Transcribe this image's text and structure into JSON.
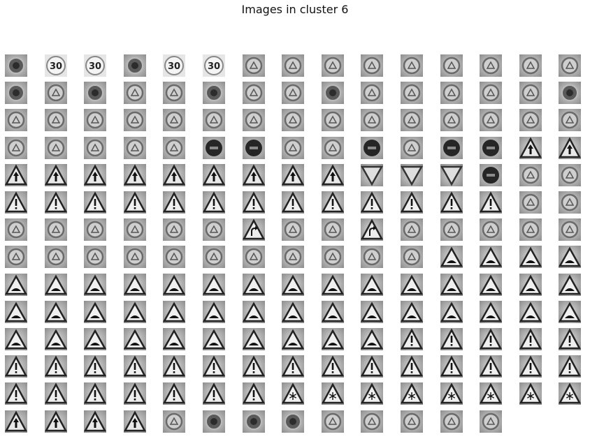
{
  "title": "Images in cluster 6",
  "grid": {
    "columns": 15,
    "count": 208,
    "tiles": [
      "circle-dark",
      "speed30",
      "speed30",
      "circle-dark",
      "speed30",
      "speed30",
      "circle-light",
      "circle-light",
      "circle-light",
      "circle-light",
      "circle-light",
      "circle-light",
      "circle-light",
      "circle-light",
      "circle-light",
      "circle-dark",
      "circle-light",
      "circle-dark",
      "circle-light",
      "circle-light",
      "circle-dark",
      "circle-light",
      "circle-light",
      "circle-dark",
      "circle-light",
      "circle-light",
      "circle-light",
      "circle-light",
      "circle-light",
      "circle-dark",
      "circle-light",
      "circle-light",
      "circle-light",
      "circle-light",
      "circle-light",
      "circle-light",
      "circle-light",
      "circle-light",
      "circle-light",
      "circle-light",
      "circle-light",
      "circle-light",
      "circle-light",
      "circle-light",
      "circle-light",
      "circle-light",
      "circle-light",
      "circle-light",
      "circle-light",
      "circle-light",
      "circle-black",
      "circle-black",
      "circle-light",
      "circle-light",
      "circle-black",
      "circle-light",
      "circle-black",
      "circle-black",
      "triangle-up",
      "triangle-up",
      "triangle-up",
      "triangle-up",
      "triangle-up",
      "triangle-up",
      "triangle-up",
      "triangle-up",
      "triangle-up",
      "triangle-up",
      "triangle-up",
      "triangle-inverted",
      "triangle-inverted",
      "triangle-inverted",
      "circle-black",
      "circle-light",
      "circle-light",
      "triangle-excl",
      "triangle-excl",
      "triangle-excl",
      "triangle-excl",
      "triangle-excl",
      "triangle-excl",
      "triangle-excl",
      "triangle-excl",
      "triangle-excl",
      "triangle-excl",
      "triangle-excl",
      "triangle-excl",
      "triangle-excl",
      "circle-light",
      "circle-light",
      "circle-light",
      "circle-light",
      "circle-light",
      "circle-light",
      "circle-light",
      "circle-light",
      "triangle-curve",
      "circle-light",
      "circle-light",
      "triangle-curve",
      "circle-light",
      "circle-light",
      "circle-light",
      "circle-light",
      "circle-light",
      "circle-light",
      "circle-light",
      "circle-light",
      "circle-light",
      "circle-light",
      "circle-light",
      "circle-light",
      "circle-light",
      "circle-light",
      "circle-light",
      "circle-light",
      "triangle-bump",
      "triangle-bump",
      "triangle-bump",
      "triangle-bump",
      "triangle-bump",
      "triangle-bump",
      "triangle-bump",
      "triangle-bump",
      "triangle-bump",
      "triangle-bump",
      "triangle-bump",
      "triangle-bump",
      "triangle-bump",
      "triangle-bump",
      "triangle-bump",
      "triangle-bump",
      "triangle-bump",
      "triangle-bump",
      "triangle-bump",
      "triangle-bump",
      "triangle-bump",
      "triangle-bump",
      "triangle-bump",
      "triangle-bump",
      "triangle-bump",
      "triangle-bump",
      "triangle-bump",
      "triangle-bump",
      "triangle-bump",
      "triangle-bump",
      "triangle-bump",
      "triangle-bump",
      "triangle-bump",
      "triangle-bump",
      "triangle-bump",
      "triangle-bump",
      "triangle-bump",
      "triangle-bump",
      "triangle-bump",
      "triangle-bump",
      "triangle-bump",
      "triangle-bump",
      "triangle-bump",
      "triangle-bump",
      "triangle-excl",
      "triangle-excl",
      "triangle-excl",
      "triangle-excl",
      "triangle-excl",
      "triangle-excl",
      "triangle-excl",
      "triangle-excl",
      "triangle-excl",
      "triangle-excl",
      "triangle-excl",
      "triangle-excl",
      "triangle-excl",
      "triangle-excl",
      "triangle-excl",
      "triangle-excl",
      "triangle-excl",
      "triangle-excl",
      "triangle-excl",
      "triangle-excl",
      "triangle-excl",
      "triangle-excl",
      "triangle-excl",
      "triangle-excl",
      "triangle-excl",
      "triangle-excl",
      "triangle-excl",
      "triangle-snow",
      "triangle-snow",
      "triangle-snow",
      "triangle-snow",
      "triangle-snow",
      "triangle-snow",
      "triangle-snow",
      "triangle-snow",
      "triangle-up",
      "triangle-up",
      "triangle-up",
      "triangle-up",
      "circle-light",
      "circle-dark",
      "circle-dark",
      "circle-dark",
      "circle-light",
      "circle-light",
      "circle-light",
      "circle-light",
      "circle-light"
    ]
  }
}
